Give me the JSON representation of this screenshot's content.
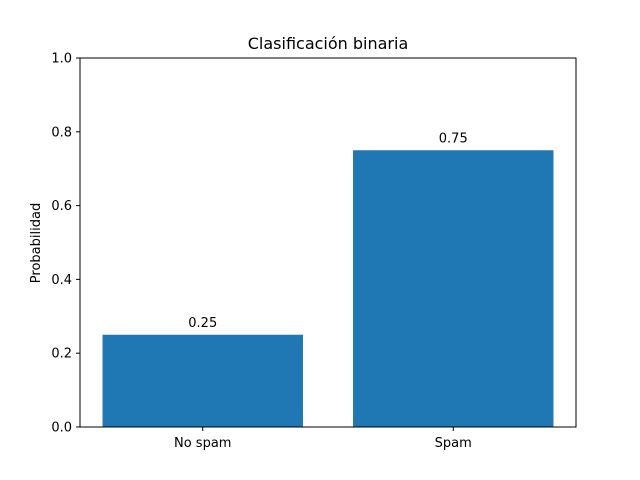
{
  "chart_data": {
    "type": "bar",
    "title": "Clasificación binaria",
    "xlabel": "",
    "ylabel": "Probabilidad",
    "categories": [
      "No spam",
      "Spam"
    ],
    "values": [
      0.25,
      0.75
    ],
    "data_labels": [
      "0.25",
      "0.75"
    ],
    "ylim": [
      0,
      1.0
    ],
    "yticks": [
      0.0,
      0.2,
      0.4,
      0.6,
      0.8,
      1.0
    ],
    "ytick_labels": [
      "0.0",
      "0.2",
      "0.4",
      "0.6",
      "0.8",
      "1.0"
    ],
    "bar_color": "#1f77b4",
    "grid": false,
    "legend": false
  }
}
